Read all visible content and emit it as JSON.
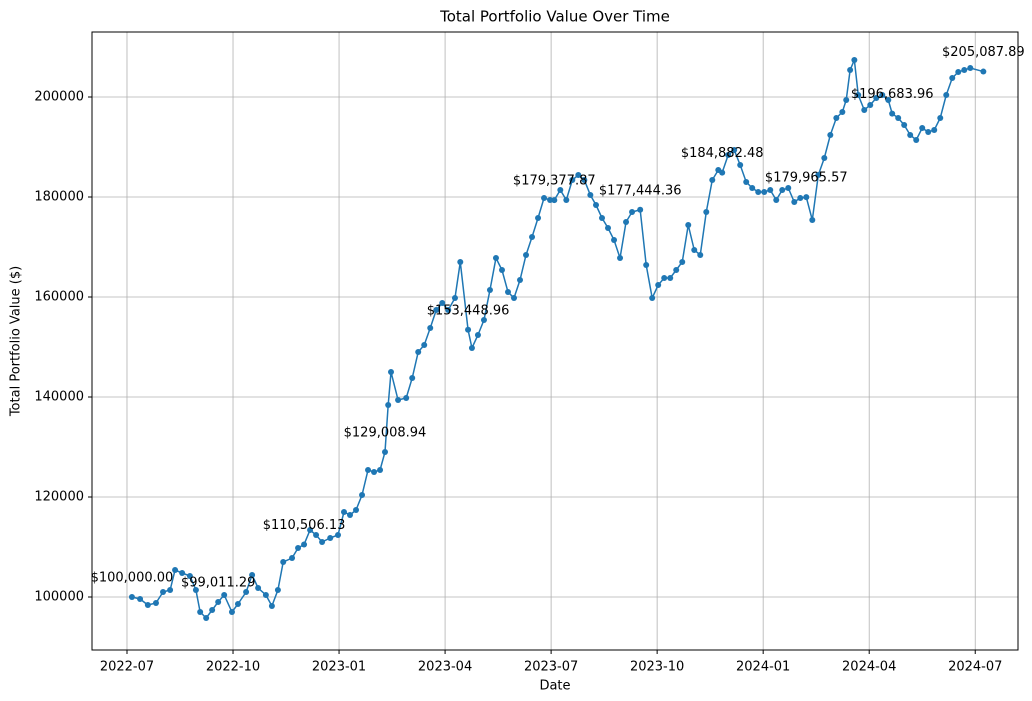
{
  "chart_data": {
    "type": "line",
    "title": "Total Portfolio Value Over Time",
    "x_label": "Date",
    "y_label": "Total Portfolio Value ($)",
    "grid": true,
    "color": "#1f77b4",
    "xlim": [
      -0.99,
      25.21
    ],
    "xticks": [
      {
        "value": 0,
        "label": "2022-07"
      },
      {
        "value": 3,
        "label": "2022-10"
      },
      {
        "value": 6,
        "label": "2023-01"
      },
      {
        "value": 9,
        "label": "2023-04"
      },
      {
        "value": 12,
        "label": "2023-07"
      },
      {
        "value": 15,
        "label": "2023-10"
      },
      {
        "value": 18,
        "label": "2024-01"
      },
      {
        "value": 21,
        "label": "2024-04"
      },
      {
        "value": 24,
        "label": "2024-07"
      }
    ],
    "ylim": [
      89400,
      213000
    ],
    "yticks": [
      100000,
      120000,
      140000,
      160000,
      180000,
      200000
    ],
    "x": [
      0.14,
      0.37,
      0.59,
      0.82,
      1.02,
      1.22,
      1.36,
      1.56,
      1.78,
      1.95,
      2.07,
      2.24,
      2.41,
      2.58,
      2.75,
      2.97,
      3.14,
      3.37,
      3.54,
      3.71,
      3.93,
      4.1,
      4.27,
      4.42,
      4.67,
      4.84,
      5.01,
      5.18,
      5.35,
      5.52,
      5.75,
      5.97,
      6.14,
      6.31,
      6.48,
      6.65,
      6.82,
      6.99,
      7.16,
      7.3,
      7.39,
      7.47,
      7.67,
      7.9,
      8.07,
      8.24,
      8.41,
      8.58,
      8.75,
      8.92,
      9.09,
      9.28,
      9.43,
      9.65,
      9.76,
      9.93,
      10.1,
      10.27,
      10.44,
      10.61,
      10.78,
      10.95,
      11.12,
      11.29,
      11.46,
      11.63,
      11.8,
      11.97,
      12.09,
      12.26,
      12.43,
      12.6,
      12.77,
      12.94,
      13.11,
      13.27,
      13.44,
      13.61,
      13.78,
      13.95,
      14.12,
      14.29,
      14.52,
      14.69,
      14.86,
      15.03,
      15.2,
      15.37,
      15.54,
      15.71,
      15.88,
      16.05,
      16.22,
      16.39,
      16.56,
      16.73,
      16.84,
      17.01,
      17.18,
      17.35,
      17.52,
      17.69,
      17.86,
      18.03,
      18.2,
      18.37,
      18.54,
      18.71,
      18.88,
      19.05,
      19.22,
      19.39,
      19.56,
      19.73,
      19.9,
      20.07,
      20.24,
      20.35,
      20.46,
      20.58,
      20.69,
      20.86,
      21.03,
      21.2,
      21.37,
      21.54,
      21.65,
      21.82,
      21.99,
      22.16,
      22.33,
      22.5,
      22.67,
      22.84,
      23.01,
      23.18,
      23.35,
      23.52,
      23.69,
      23.86,
      24.23
    ],
    "values": [
      100000,
      99600,
      98400,
      98800,
      101000,
      101400,
      105400,
      104800,
      104200,
      101400,
      97000,
      95800,
      97400,
      99011.29,
      100400,
      97000,
      98600,
      101000,
      104400,
      101800,
      100400,
      98200,
      101400,
      107000,
      107800,
      109800,
      110506.13,
      113400,
      112400,
      111000,
      111800,
      112400,
      117000,
      116400,
      117400,
      120400,
      125400,
      125000,
      125400,
      129008.94,
      138400,
      145000,
      139400,
      139800,
      143800,
      149000,
      150400,
      153800,
      157400,
      158800,
      157400,
      159800,
      167000,
      153448.96,
      149800,
      152400,
      155400,
      161400,
      167800,
      165400,
      161000,
      159800,
      163400,
      168400,
      172000,
      175800,
      179800,
      179400,
      179377.87,
      181400,
      179400,
      183400,
      184400,
      183400,
      180400,
      178400,
      175800,
      173800,
      171400,
      167800,
      175000,
      177000,
      177444.36,
      166400,
      159800,
      162400,
      163800,
      163800,
      165400,
      167000,
      174400,
      169400,
      168400,
      177000,
      183400,
      185400,
      184882.48,
      188400,
      189400,
      186400,
      183000,
      181800,
      181000,
      181000,
      181400,
      179400,
      181400,
      181800,
      179000,
      179800,
      179965.57,
      175400,
      184400,
      187800,
      192400,
      195800,
      197000,
      199400,
      205400,
      207400,
      200400,
      197400,
      198400,
      199800,
      200400,
      199400,
      196683.96,
      195800,
      194400,
      192400,
      191400,
      193800,
      193000,
      193400,
      195800,
      200400,
      203800,
      205000,
      205400,
      205800,
      205087.89
    ],
    "annotations": [
      {
        "x": 0.14,
        "y": 100000,
        "label": "$100,000.00"
      },
      {
        "x": 2.58,
        "y": 99011.29,
        "label": "$99,011.29"
      },
      {
        "x": 5.01,
        "y": 110506.13,
        "label": "$110,506.13"
      },
      {
        "x": 7.3,
        "y": 129008.94,
        "label": "$129,008.94"
      },
      {
        "x": 9.65,
        "y": 153448.96,
        "label": "$153,448.96"
      },
      {
        "x": 12.09,
        "y": 179377.87,
        "label": "$179,377.87"
      },
      {
        "x": 14.52,
        "y": 177444.36,
        "label": "$177,444.36"
      },
      {
        "x": 16.84,
        "y": 184882.48,
        "label": "$184,882.48"
      },
      {
        "x": 19.22,
        "y": 179965.57,
        "label": "$179,965.57"
      },
      {
        "x": 21.65,
        "y": 196683.96,
        "label": "$196,683.96"
      },
      {
        "x": 24.23,
        "y": 205087.89,
        "label": "$205,087.89"
      }
    ]
  }
}
